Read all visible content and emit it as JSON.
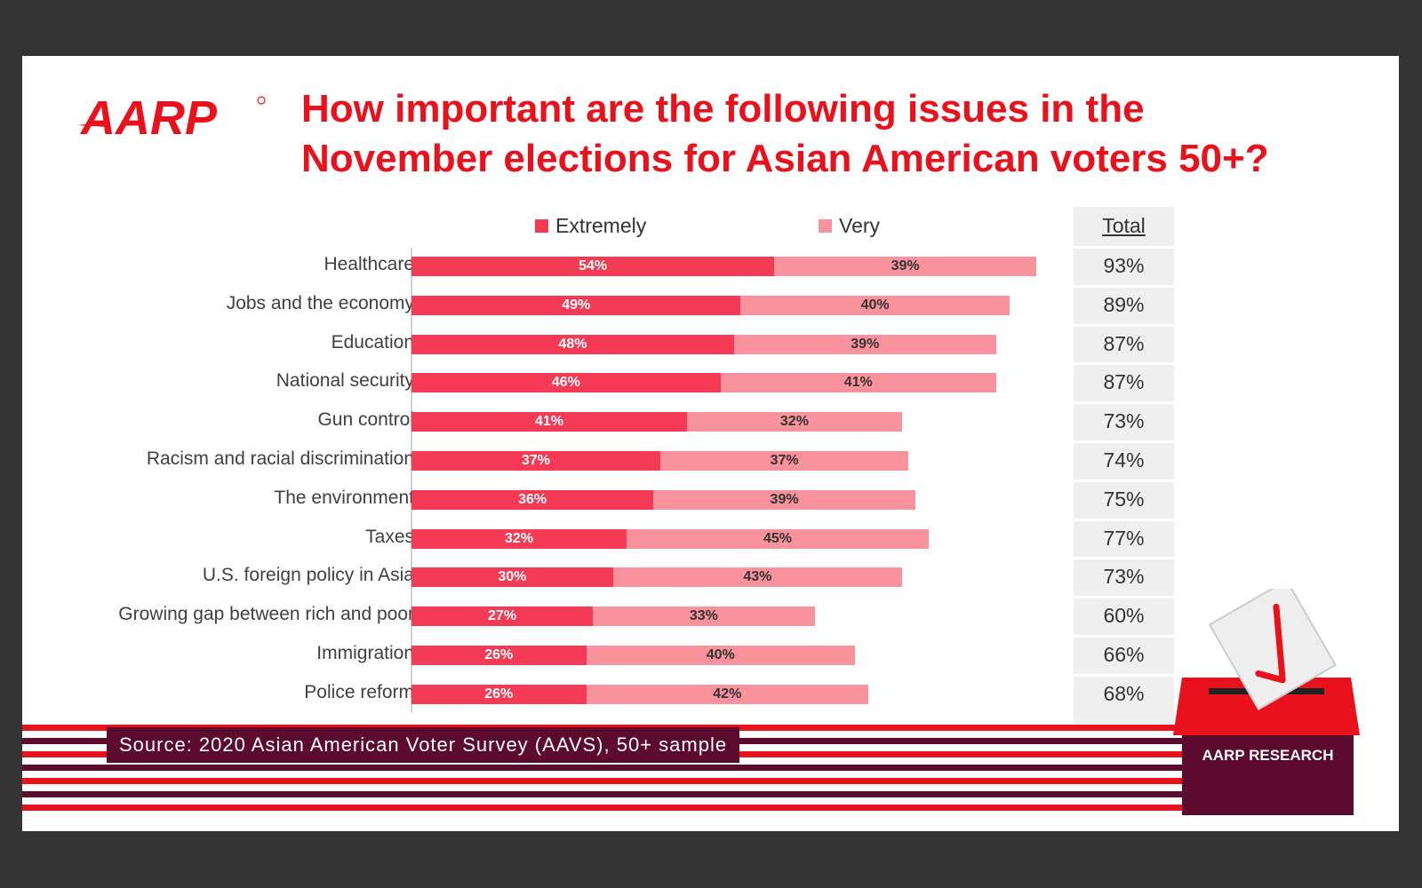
{
  "brand": {
    "logo_text": "AARP",
    "footer_label": "AARP RESEARCH"
  },
  "title": {
    "line1": "How important are the following issues in the",
    "line2": "November elections for Asian American voters 50+?"
  },
  "legend": {
    "extremely": "Extremely",
    "very": "Very",
    "total_header": "Total"
  },
  "source": "Source: 2020 Asian American Voter Survey (AAVS), 50+ sample",
  "colors": {
    "brand_red": "#e8111c",
    "extremely": "#f43a55",
    "very": "#f8939e",
    "maroon": "#5c0a2e",
    "stripe_red": "#e8111c"
  },
  "chart_data": {
    "type": "bar",
    "orientation": "horizontal",
    "stacked": true,
    "title": "How important are the following issues in the November elections for Asian American voters 50+?",
    "categories": [
      "Healthcare",
      "Jobs and the economy",
      "Education",
      "National security",
      "Gun control",
      "Racism and racial discrimination",
      "The environment",
      "Taxes",
      "U.S. foreign policy in Asia",
      "Growing gap between rich and poor",
      "Immigration",
      "Police reform"
    ],
    "series": [
      {
        "name": "Extremely",
        "values": [
          54,
          49,
          48,
          46,
          41,
          37,
          36,
          32,
          30,
          27,
          26,
          26
        ]
      },
      {
        "name": "Very",
        "values": [
          39,
          40,
          39,
          41,
          32,
          37,
          39,
          45,
          43,
          33,
          40,
          42
        ]
      }
    ],
    "totals": [
      "93%",
      "89%",
      "87%",
      "87%",
      "73%",
      "74%",
      "75%",
      "77%",
      "73%",
      "60%",
      "66%",
      "68%"
    ],
    "unit": "%",
    "xlim": [
      0,
      100
    ],
    "legend_position": "top"
  }
}
